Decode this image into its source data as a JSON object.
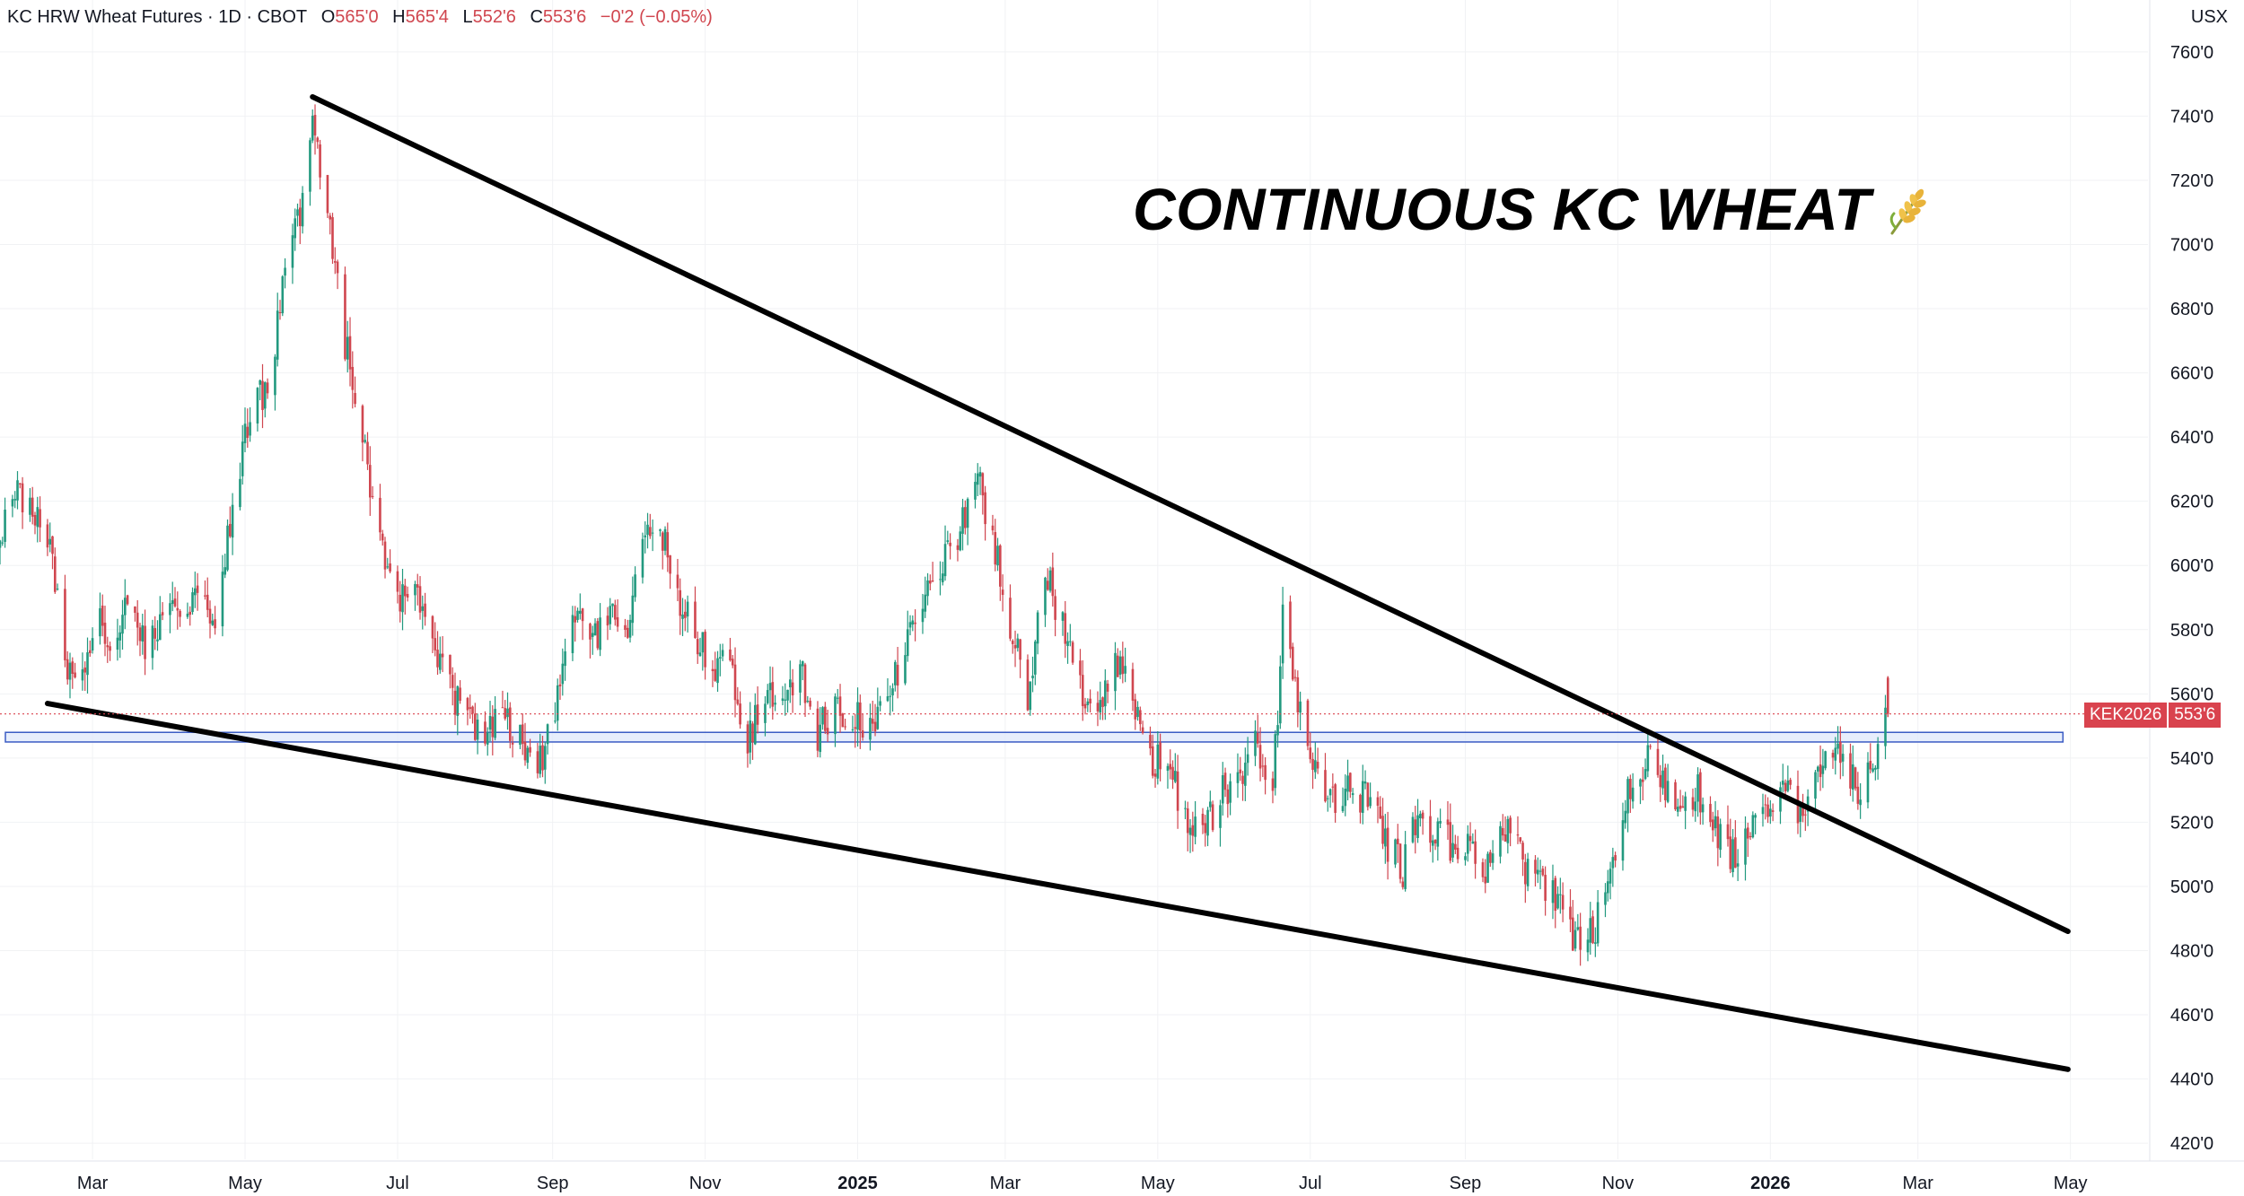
{
  "header": {
    "symbol": "KC HRW Wheat Futures · 1D · CBOT",
    "open_label": "O",
    "open": "565'0",
    "high_label": "H",
    "high": "565'4",
    "low_label": "L",
    "low": "552'6",
    "close_label": "C",
    "close": "553'6",
    "change": "−0'2 (−0.05%)"
  },
  "unit": "USX",
  "annotation_title": "CONTINUOUS KC WHEAT",
  "annotation_icon": "wheat-icon",
  "price_tag": {
    "symbol": "KEK2026",
    "price": "553'6"
  },
  "colors": {
    "up": "#22997f",
    "down": "#d0464f",
    "trendline": "#000000",
    "support_band_fill": "#dfe8fb",
    "support_band_stroke": "#3b5cc4",
    "price_tag": "#d9434e",
    "grid": "#f1f2f4"
  },
  "chart_data": {
    "type": "candlestick",
    "title": "CONTINUOUS KC WHEAT",
    "ylim": [
      415,
      765
    ],
    "y_ticks": [
      420,
      440,
      460,
      480,
      500,
      520,
      540,
      560,
      580,
      600,
      620,
      640,
      660,
      680,
      700,
      720,
      740,
      760
    ],
    "y_tick_labels": [
      "420'0",
      "440'0",
      "460'0",
      "480'0",
      "500'0",
      "520'0",
      "540'0",
      "560'0",
      "580'0",
      "600'0",
      "620'0",
      "640'0",
      "660'0",
      "680'0",
      "700'0",
      "720'0",
      "740'0",
      "760'0"
    ],
    "xlim": [
      "2024-01-24",
      "2026-06-01"
    ],
    "x_ticks": [
      "2024-03-01",
      "2024-05-01",
      "2024-07-01",
      "2024-09-01",
      "2024-11-01",
      "2025-01-01",
      "2025-03-01",
      "2025-05-01",
      "2025-07-01",
      "2025-09-01",
      "2025-11-01",
      "2026-01-01",
      "2026-03-01",
      "2026-05-01"
    ],
    "x_tick_labels": [
      "Mar",
      "May",
      "Jul",
      "Sep",
      "Nov",
      "2025",
      "Mar",
      "May",
      "Jul",
      "Sep",
      "Nov",
      "2026",
      "Mar",
      "May"
    ],
    "x_tick_bold": [
      false,
      false,
      false,
      false,
      false,
      true,
      false,
      false,
      false,
      false,
      false,
      true,
      false,
      false
    ],
    "grid": true,
    "price_path": [
      [
        "2024-01-24",
        605
      ],
      [
        "2024-01-30",
        625
      ],
      [
        "2024-02-05",
        620
      ],
      [
        "2024-02-12",
        610
      ],
      [
        "2024-02-20",
        570
      ],
      [
        "2024-02-26",
        563
      ],
      [
        "2024-03-04",
        582
      ],
      [
        "2024-03-08",
        568
      ],
      [
        "2024-03-15",
        590
      ],
      [
        "2024-03-22",
        575
      ],
      [
        "2024-03-29",
        585
      ],
      [
        "2024-04-05",
        583
      ],
      [
        "2024-04-12",
        595
      ],
      [
        "2024-04-19",
        578
      ],
      [
        "2024-04-26",
        620
      ],
      [
        "2024-05-03",
        650
      ],
      [
        "2024-05-10",
        655
      ],
      [
        "2024-05-17",
        690
      ],
      [
        "2024-05-24",
        715
      ],
      [
        "2024-05-28",
        735
      ],
      [
        "2024-06-03",
        708
      ],
      [
        "2024-06-10",
        670
      ],
      [
        "2024-06-17",
        640
      ],
      [
        "2024-06-24",
        610
      ],
      [
        "2024-07-01",
        590
      ],
      [
        "2024-07-08",
        598
      ],
      [
        "2024-07-15",
        572
      ],
      [
        "2024-07-22",
        562
      ],
      [
        "2024-07-29",
        552
      ],
      [
        "2024-08-05",
        548
      ],
      [
        "2024-08-12",
        556
      ],
      [
        "2024-08-19",
        545
      ],
      [
        "2024-08-26",
        535
      ],
      [
        "2024-09-02",
        555
      ],
      [
        "2024-09-09",
        590
      ],
      [
        "2024-09-16",
        575
      ],
      [
        "2024-09-23",
        585
      ],
      [
        "2024-09-30",
        578
      ],
      [
        "2024-10-07",
        608
      ],
      [
        "2024-10-14",
        612
      ],
      [
        "2024-10-21",
        590
      ],
      [
        "2024-10-28",
        578
      ],
      [
        "2024-11-04",
        570
      ],
      [
        "2024-11-11",
        568
      ],
      [
        "2024-11-18",
        545
      ],
      [
        "2024-11-25",
        560
      ],
      [
        "2024-12-02",
        555
      ],
      [
        "2024-12-09",
        568
      ],
      [
        "2024-12-16",
        548
      ],
      [
        "2024-12-23",
        555
      ],
      [
        "2024-12-30",
        552
      ],
      [
        "2025-01-06",
        550
      ],
      [
        "2025-01-13",
        560
      ],
      [
        "2025-01-20",
        575
      ],
      [
        "2025-01-27",
        590
      ],
      [
        "2025-02-03",
        600
      ],
      [
        "2025-02-10",
        605
      ],
      [
        "2025-02-17",
        632
      ],
      [
        "2025-02-24",
        608
      ],
      [
        "2025-03-03",
        582
      ],
      [
        "2025-03-10",
        558
      ],
      [
        "2025-03-17",
        600
      ],
      [
        "2025-03-24",
        580
      ],
      [
        "2025-03-31",
        560
      ],
      [
        "2025-04-07",
        555
      ],
      [
        "2025-04-14",
        570
      ],
      [
        "2025-04-21",
        560
      ],
      [
        "2025-04-28",
        540
      ],
      [
        "2025-05-05",
        538
      ],
      [
        "2025-05-12",
        520
      ],
      [
        "2025-05-19",
        515
      ],
      [
        "2025-05-26",
        528
      ],
      [
        "2025-06-02",
        535
      ],
      [
        "2025-06-09",
        545
      ],
      [
        "2025-06-16",
        530
      ],
      [
        "2025-06-20",
        582
      ],
      [
        "2025-06-26",
        558
      ],
      [
        "2025-07-03",
        535
      ],
      [
        "2025-07-10",
        528
      ],
      [
        "2025-07-17",
        530
      ],
      [
        "2025-07-24",
        528
      ],
      [
        "2025-07-31",
        515
      ],
      [
        "2025-08-07",
        505
      ],
      [
        "2025-08-14",
        525
      ],
      [
        "2025-08-21",
        515
      ],
      [
        "2025-08-28",
        513
      ],
      [
        "2025-09-04",
        510
      ],
      [
        "2025-09-11",
        505
      ],
      [
        "2025-09-18",
        520
      ],
      [
        "2025-09-25",
        505
      ],
      [
        "2025-10-02",
        498
      ],
      [
        "2025-10-09",
        495
      ],
      [
        "2025-10-16",
        482
      ],
      [
        "2025-10-22",
        485
      ],
      [
        "2025-10-29",
        500
      ],
      [
        "2025-11-05",
        528
      ],
      [
        "2025-11-12",
        540
      ],
      [
        "2025-11-19",
        532
      ],
      [
        "2025-11-26",
        526
      ],
      [
        "2025-12-03",
        530
      ],
      [
        "2025-12-10",
        516
      ],
      [
        "2025-12-17",
        510
      ],
      [
        "2025-12-24",
        518
      ],
      [
        "2025-12-31",
        520
      ],
      [
        "2026-01-07",
        530
      ],
      [
        "2026-01-14",
        520
      ],
      [
        "2026-01-21",
        538
      ],
      [
        "2026-01-28",
        545
      ],
      [
        "2026-02-04",
        530
      ],
      [
        "2026-02-09",
        533
      ],
      [
        "2026-02-13",
        545
      ],
      [
        "2026-02-17",
        553.75
      ]
    ],
    "last_candle": {
      "date": "2026-02-17",
      "open": 565,
      "high": 565.5,
      "low": 552.75,
      "close": 553.75
    },
    "last_price": 553.75,
    "support_band": {
      "x": [
        "2024-01-24",
        "2026-04-28"
      ],
      "y": [
        545,
        548
      ]
    },
    "trendlines": [
      {
        "name": "upper",
        "from": [
          "2024-05-28",
          746
        ],
        "to": [
          "2026-04-30",
          486
        ]
      },
      {
        "name": "lower",
        "from": [
          "2024-02-12",
          557
        ],
        "to": [
          "2026-04-30",
          443
        ]
      }
    ]
  }
}
